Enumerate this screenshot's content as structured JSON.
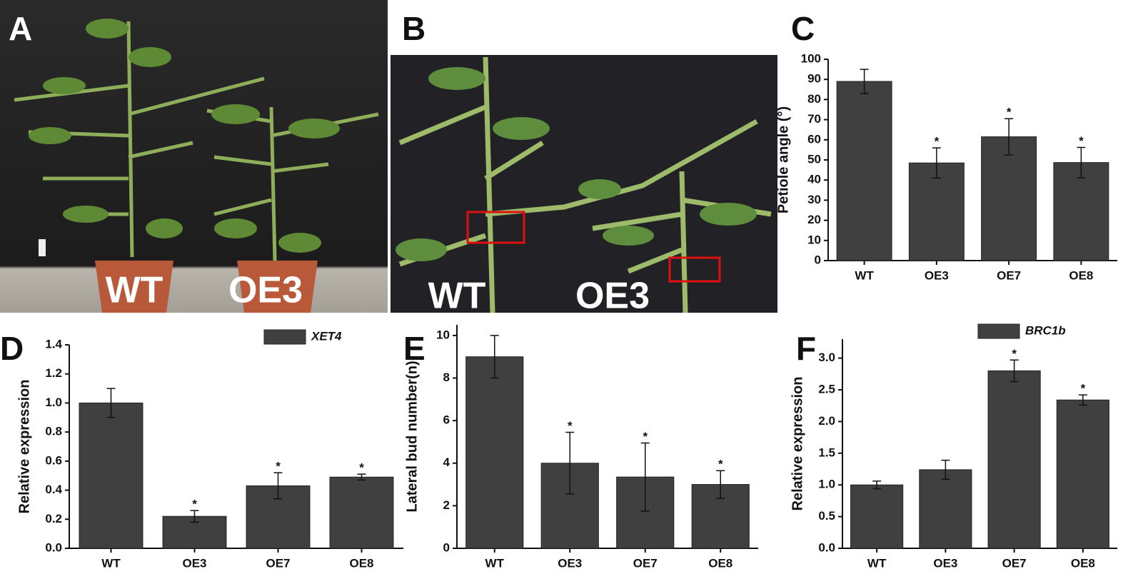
{
  "photos": [
    {
      "panel": "A",
      "labels": [
        "WT",
        "OE3"
      ]
    },
    {
      "panel": "B",
      "labels": [
        "WT",
        "OE3"
      ]
    }
  ],
  "chart_data": [
    {
      "type": "bar",
      "panel": "C",
      "ylabel": "Petiole angle (°)",
      "categories": [
        "WT",
        "OE3",
        "OE7",
        "OE8"
      ],
      "values": [
        89,
        48.5,
        61.5,
        48.7
      ],
      "errors": [
        6,
        7.5,
        9,
        7.5
      ],
      "color": "#404040",
      "significant": [
        false,
        true,
        true,
        true
      ],
      "marker": "*",
      "ylim": [
        0,
        100
      ],
      "yticks": [
        0,
        10,
        20,
        30,
        40,
        50,
        60,
        70,
        80,
        90,
        100
      ]
    },
    {
      "type": "bar",
      "panel": "D",
      "ylabel": "Relative expression",
      "categories": [
        "WT",
        "OE3",
        "OE7",
        "OE8"
      ],
      "series": [
        {
          "name": "XET4",
          "color": "#404040",
          "values": [
            1.0,
            0.22,
            0.43,
            0.49
          ],
          "errors": [
            0.1,
            0.04,
            0.09,
            0.02
          ]
        }
      ],
      "significant": [
        false,
        true,
        true,
        true
      ],
      "marker": "*",
      "legend": "upper right",
      "ylim": [
        0,
        1.4
      ],
      "yticks": [
        {
          "value": 0,
          "label": "0.0"
        },
        0.2,
        0.4,
        0.6,
        0.8,
        {
          "value": 1,
          "label": "1.0"
        },
        1.2,
        1.4
      ]
    },
    {
      "type": "bar",
      "panel": "E",
      "ylabel": "Lateral bud number(n)",
      "categories": [
        "WT",
        "OE3",
        "OE7",
        "OE8"
      ],
      "values": [
        9,
        4,
        3.35,
        3
      ],
      "errors": [
        1,
        1.45,
        1.6,
        0.65
      ],
      "color": "#404040",
      "significant": [
        false,
        true,
        true,
        true
      ],
      "marker": "*",
      "ylim": [
        0,
        10.5
      ],
      "yticks": [
        0,
        2,
        4,
        6,
        8,
        10
      ]
    },
    {
      "type": "bar",
      "panel": "F",
      "ylabel": "Relative expression",
      "categories": [
        "WT",
        "OE3",
        "OE7",
        "OE8"
      ],
      "series": [
        {
          "name": "BRC1b",
          "color": "#404040",
          "values": [
            1.0,
            1.24,
            2.8,
            2.34
          ],
          "errors": [
            0.06,
            0.15,
            0.17,
            0.08
          ]
        }
      ],
      "significant": [
        false,
        false,
        true,
        true
      ],
      "marker": "*",
      "legend": "upper right",
      "ylim": [
        0,
        3.3
      ],
      "yticks": [
        {
          "value": 0,
          "label": "0.0"
        },
        0.5,
        {
          "value": 1,
          "label": "1.0"
        },
        1.5,
        {
          "value": 2,
          "label": "2.0"
        },
        2.5,
        {
          "value": 3,
          "label": "3.0"
        }
      ]
    }
  ]
}
